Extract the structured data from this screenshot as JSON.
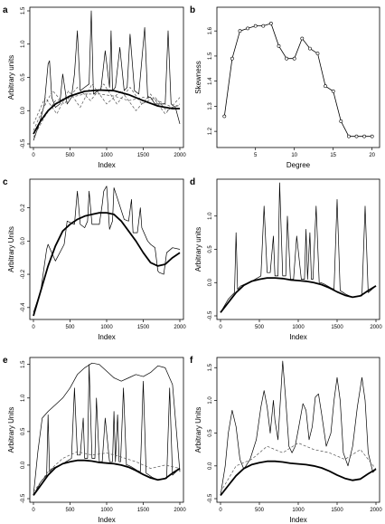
{
  "figure": {
    "colors": {
      "ink": "#000000",
      "dashed": "#555555",
      "background": "#ffffff"
    }
  },
  "chart_data": [
    {
      "panel": "a",
      "type": "line",
      "xlabel": "Index",
      "ylabel": "Arbitrary units",
      "xlim": [
        0,
        2000
      ],
      "ylim": [
        -0.5,
        1.5
      ],
      "xticks": [
        "0",
        "500",
        "1000",
        "1500",
        "2000"
      ],
      "yticks": [
        "-0.5",
        "0.0",
        "0.5",
        "1.0",
        "1.5"
      ],
      "series": [
        {
          "style": "thick",
          "x": [
            0,
            100,
            200,
            300,
            500,
            700,
            900,
            1100,
            1300,
            1500,
            1700,
            1900,
            2000
          ],
          "y": [
            -0.35,
            -0.15,
            0.0,
            0.1,
            0.22,
            0.29,
            0.31,
            0.3,
            0.24,
            0.15,
            0.07,
            0.03,
            0.03
          ]
        },
        {
          "style": "thin",
          "x": [
            0,
            80,
            150,
            200,
            220,
            250,
            300,
            360,
            400,
            460,
            520,
            560,
            600,
            640,
            700,
            760,
            790,
            820,
            880,
            920,
            980,
            1040,
            1060,
            1080,
            1120,
            1180,
            1240,
            1280,
            1320,
            1380,
            1440,
            1520,
            1560,
            1600,
            1660,
            1720,
            1800,
            1840,
            1880,
            1940,
            2000
          ],
          "y": [
            -0.45,
            -0.2,
            0.1,
            0.7,
            0.75,
            0.2,
            0.05,
            0.1,
            0.55,
            0.1,
            0.2,
            0.55,
            1.2,
            0.3,
            0.35,
            0.4,
            1.5,
            0.25,
            0.3,
            0.3,
            0.9,
            0.35,
            1.2,
            0.3,
            0.35,
            0.95,
            0.3,
            0.35,
            1.15,
            0.3,
            0.25,
            1.25,
            0.2,
            0.2,
            0.1,
            0.1,
            0.1,
            1.2,
            0.1,
            0.05,
            -0.2
          ]
        },
        {
          "style": "dashed",
          "x": [
            0,
            150,
            300,
            500,
            700,
            900,
            1100,
            1300,
            1500,
            1700,
            1900,
            2000
          ],
          "y": [
            -0.4,
            -0.1,
            0.15,
            0.2,
            0.25,
            0.25,
            0.22,
            0.15,
            0.2,
            0.15,
            0.05,
            0.08
          ]
        },
        {
          "style": "dashed",
          "x": [
            0,
            120,
            260,
            420,
            600,
            780,
            960,
            1140,
            1320,
            1480,
            1660,
            1820,
            2000
          ],
          "y": [
            -0.3,
            0.0,
            0.3,
            0.1,
            0.35,
            0.15,
            0.4,
            0.1,
            0.35,
            0.1,
            0.2,
            0.0,
            0.1
          ]
        },
        {
          "style": "dashed",
          "x": [
            0,
            160,
            320,
            480,
            640,
            800,
            1000,
            1200,
            1400,
            1600,
            1800,
            2000
          ],
          "y": [
            -0.2,
            0.2,
            -0.05,
            0.3,
            0.05,
            0.4,
            0.1,
            0.3,
            0.0,
            0.25,
            -0.05,
            0.2
          ]
        }
      ]
    },
    {
      "panel": "b",
      "type": "line",
      "xlabel": "Degree",
      "ylabel": "Skewness",
      "xlim": [
        0.5,
        20.5
      ],
      "ylim": [
        1.15,
        1.68
      ],
      "xticks": [
        "5",
        "10",
        "15",
        "20"
      ],
      "yticks": [
        "1.2",
        "1.3",
        "1.4",
        "1.5",
        "1.6"
      ],
      "x": [
        1,
        2,
        3,
        4,
        5,
        6,
        7,
        8,
        9,
        10,
        11,
        12,
        13,
        14,
        15,
        16,
        17,
        18,
        19,
        20
      ],
      "y": [
        1.26,
        1.49,
        1.6,
        1.61,
        1.62,
        1.62,
        1.63,
        1.54,
        1.49,
        1.49,
        1.57,
        1.53,
        1.51,
        1.38,
        1.36,
        1.24,
        1.18,
        1.18,
        1.18,
        1.18
      ]
    },
    {
      "panel": "c",
      "type": "line",
      "xlabel": "Index",
      "ylabel": "Arbitrary Units",
      "xlim": [
        0,
        2000
      ],
      "ylim": [
        -0.45,
        0.35
      ],
      "xticks": [
        "0",
        "500",
        "1000",
        "1500",
        "2000"
      ],
      "yticks": [
        "-0.4",
        "-0.2",
        "0.0",
        "0.2"
      ],
      "series": [
        {
          "style": "thick",
          "x": [
            0,
            100,
            200,
            300,
            400,
            500,
            600,
            700,
            800,
            900,
            1000,
            1100,
            1200,
            1300,
            1400,
            1500,
            1600,
            1700,
            1800,
            1900,
            2000
          ],
          "y": [
            -0.45,
            -0.3,
            -0.15,
            -0.03,
            0.06,
            0.1,
            0.13,
            0.15,
            0.16,
            0.17,
            0.17,
            0.16,
            0.12,
            0.06,
            0.0,
            -0.07,
            -0.13,
            -0.15,
            -0.14,
            -0.1,
            -0.07
          ]
        },
        {
          "style": "thin",
          "x": [
            0,
            100,
            180,
            200,
            300,
            420,
            460,
            560,
            600,
            640,
            700,
            740,
            760,
            800,
            900,
            940,
            960,
            1000,
            1040,
            1080,
            1100,
            1240,
            1300,
            1340,
            1360,
            1420,
            1460,
            1480,
            1560,
            1600,
            1660,
            1700,
            1720,
            1780,
            1820,
            1900,
            2000
          ],
          "y": [
            -0.43,
            -0.3,
            -0.05,
            -0.02,
            -0.12,
            -0.02,
            0.12,
            0.1,
            0.3,
            0.1,
            0.08,
            0.12,
            0.3,
            0.1,
            0.1,
            0.22,
            0.3,
            0.33,
            0.07,
            0.12,
            0.32,
            0.13,
            0.12,
            0.25,
            0.05,
            0.05,
            0.2,
            0.08,
            0.0,
            -0.02,
            -0.04,
            -0.18,
            -0.19,
            -0.2,
            -0.07,
            -0.04,
            -0.05
          ]
        }
      ]
    },
    {
      "panel": "d",
      "type": "line",
      "xlabel": "Index",
      "ylabel": "Arbitrary units",
      "xlim": [
        0,
        2000
      ],
      "ylim": [
        -0.5,
        1.5
      ],
      "xticks": [
        "0",
        "500",
        "1000",
        "1500",
        "2000"
      ],
      "yticks": [
        "-0.5",
        "0.0",
        "0.5",
        "1.0"
      ],
      "series": [
        {
          "style": "thick",
          "x": [
            0,
            100,
            200,
            300,
            400,
            500,
            600,
            700,
            800,
            900,
            1000,
            1100,
            1200,
            1300,
            1400,
            1500,
            1600,
            1700,
            1800,
            1900,
            2000
          ],
          "y": [
            -0.45,
            -0.3,
            -0.15,
            -0.04,
            0.02,
            0.05,
            0.07,
            0.07,
            0.06,
            0.04,
            0.03,
            0.02,
            0.0,
            -0.03,
            -0.08,
            -0.14,
            -0.19,
            -0.22,
            -0.2,
            -0.12,
            -0.05
          ]
        },
        {
          "style": "thin",
          "x": [
            0,
            100,
            140,
            180,
            200,
            220,
            260,
            400,
            520,
            560,
            600,
            640,
            680,
            700,
            740,
            760,
            800,
            840,
            860,
            900,
            940,
            980,
            1040,
            1080,
            1100,
            1120,
            1150,
            1170,
            1190,
            1230,
            1270,
            1290,
            1330,
            1420,
            1460,
            1500,
            1540,
            1580,
            1620,
            1700,
            1780,
            1820,
            1860,
            1900,
            1950,
            2000
          ],
          "y": [
            -0.45,
            -0.25,
            -0.2,
            -0.15,
            0.75,
            -0.1,
            -0.05,
            0.02,
            0.1,
            1.15,
            0.15,
            0.15,
            0.7,
            0.1,
            0.1,
            1.5,
            0.1,
            0.1,
            1.0,
            0.05,
            0.05,
            0.7,
            0.05,
            0.05,
            0.8,
            0.05,
            0.75,
            0.05,
            0.05,
            1.15,
            0.0,
            0.0,
            -0.02,
            -0.08,
            -0.1,
            1.25,
            -0.12,
            -0.15,
            -0.18,
            -0.22,
            -0.2,
            -0.2,
            1.15,
            -0.15,
            -0.1,
            -0.05
          ]
        }
      ]
    },
    {
      "panel": "e",
      "type": "line",
      "xlabel": "Index",
      "ylabel": "Arbitrary Units",
      "xlim": [
        0,
        2000
      ],
      "ylim": [
        -0.5,
        1.55
      ],
      "xticks": [
        "0",
        "500",
        "1000",
        "1500",
        "2000"
      ],
      "yticks": [
        "-0.5",
        "0.0",
        "0.5",
        "1.0",
        "1.5"
      ],
      "series": [
        {
          "style": "thick",
          "x": [
            0,
            100,
            200,
            300,
            400,
            500,
            600,
            700,
            800,
            900,
            1000,
            1100,
            1200,
            1300,
            1400,
            1500,
            1600,
            1700,
            1800,
            1900,
            2000
          ],
          "y": [
            -0.45,
            -0.3,
            -0.15,
            -0.04,
            0.02,
            0.05,
            0.07,
            0.07,
            0.06,
            0.04,
            0.03,
            0.02,
            0.0,
            -0.03,
            -0.08,
            -0.14,
            -0.19,
            -0.22,
            -0.2,
            -0.12,
            -0.05
          ]
        },
        {
          "style": "thin",
          "x": [
            0,
            60,
            120,
            200,
            300,
            400,
            500,
            600,
            700,
            800,
            900,
            1000,
            1100,
            1200,
            1300,
            1400,
            1500,
            1600,
            1700,
            1800,
            1900,
            2000
          ],
          "y": [
            -0.45,
            0.2,
            0.7,
            0.8,
            0.9,
            1.0,
            1.15,
            1.35,
            1.45,
            1.52,
            1.5,
            1.4,
            1.3,
            1.25,
            1.3,
            1.35,
            1.32,
            1.38,
            1.48,
            1.45,
            1.2,
            -0.1
          ]
        },
        {
          "style": "thin",
          "x": [
            0,
            100,
            140,
            180,
            200,
            220,
            260,
            400,
            520,
            560,
            600,
            640,
            680,
            700,
            740,
            760,
            800,
            840,
            860,
            900,
            940,
            980,
            1040,
            1080,
            1100,
            1120,
            1150,
            1170,
            1190,
            1230,
            1270,
            1290,
            1330,
            1420,
            1460,
            1500,
            1540,
            1580,
            1620,
            1700,
            1780,
            1820,
            1860,
            1900,
            1950,
            2000
          ],
          "y": [
            -0.45,
            -0.25,
            -0.2,
            -0.15,
            0.75,
            -0.1,
            -0.05,
            0.02,
            0.1,
            1.15,
            0.15,
            0.15,
            0.7,
            0.1,
            0.1,
            1.5,
            0.1,
            0.1,
            1.0,
            0.05,
            0.05,
            0.7,
            0.05,
            0.05,
            0.8,
            0.05,
            0.75,
            0.05,
            0.05,
            1.15,
            0.0,
            0.0,
            -0.02,
            -0.08,
            -0.1,
            1.25,
            -0.12,
            -0.15,
            -0.18,
            -0.22,
            -0.2,
            -0.2,
            1.15,
            -0.15,
            -0.1,
            -0.05
          ]
        },
        {
          "style": "dashed",
          "x": [
            0,
            200,
            400,
            600,
            800,
            1000,
            1200,
            1400,
            1600,
            1800,
            2000
          ],
          "y": [
            -0.4,
            -0.1,
            0.1,
            0.2,
            0.15,
            0.18,
            0.12,
            0.05,
            -0.05,
            0.0,
            -0.05
          ]
        }
      ]
    },
    {
      "panel": "f",
      "type": "line",
      "xlabel": "Index",
      "ylabel": "Arbitrary Units",
      "xlim": [
        0,
        2000
      ],
      "ylim": [
        -0.5,
        1.6
      ],
      "xticks": [
        "0",
        "500",
        "1000",
        "1500",
        "2000"
      ],
      "yticks": [
        "-0.5",
        "0.0",
        "0.5",
        "1.0",
        "1.5"
      ],
      "series": [
        {
          "style": "thick",
          "x": [
            0,
            100,
            200,
            300,
            400,
            500,
            600,
            700,
            800,
            900,
            1000,
            1100,
            1200,
            1300,
            1400,
            1500,
            1600,
            1700,
            1800,
            1900,
            2000
          ],
          "y": [
            -0.45,
            -0.3,
            -0.15,
            -0.04,
            0.02,
            0.05,
            0.07,
            0.07,
            0.06,
            0.04,
            0.03,
            0.02,
            0.0,
            -0.03,
            -0.08,
            -0.14,
            -0.19,
            -0.22,
            -0.2,
            -0.12,
            -0.05
          ]
        },
        {
          "style": "thin",
          "x": [
            0,
            60,
            100,
            150,
            200,
            250,
            300,
            380,
            460,
            520,
            560,
            600,
            640,
            680,
            700,
            740,
            780,
            800,
            840,
            880,
            920,
            960,
            1000,
            1060,
            1100,
            1140,
            1180,
            1220,
            1260,
            1300,
            1360,
            1420,
            1460,
            1500,
            1540,
            1580,
            1640,
            1700,
            1760,
            1820,
            1860,
            1900,
            1960,
            2000
          ],
          "y": [
            -0.45,
            0.0,
            0.5,
            0.85,
            0.6,
            0.1,
            -0.05,
            0.1,
            0.4,
            0.9,
            1.15,
            0.9,
            0.5,
            1.0,
            0.7,
            0.4,
            1.2,
            1.6,
            1.0,
            0.3,
            0.2,
            0.3,
            0.55,
            0.95,
            0.85,
            0.4,
            0.6,
            1.05,
            1.1,
            0.8,
            0.3,
            0.5,
            1.0,
            1.35,
            1.0,
            0.2,
            0.0,
            0.3,
            0.9,
            1.35,
            1.0,
            0.2,
            -0.1,
            -0.05
          ]
        },
        {
          "style": "dashed",
          "x": [
            0,
            200,
            400,
            600,
            800,
            1000,
            1200,
            1400,
            1600,
            1800,
            2000
          ],
          "y": [
            -0.4,
            0.0,
            0.1,
            0.3,
            0.2,
            0.35,
            0.25,
            0.2,
            0.1,
            0.25,
            -0.05
          ]
        }
      ]
    }
  ]
}
